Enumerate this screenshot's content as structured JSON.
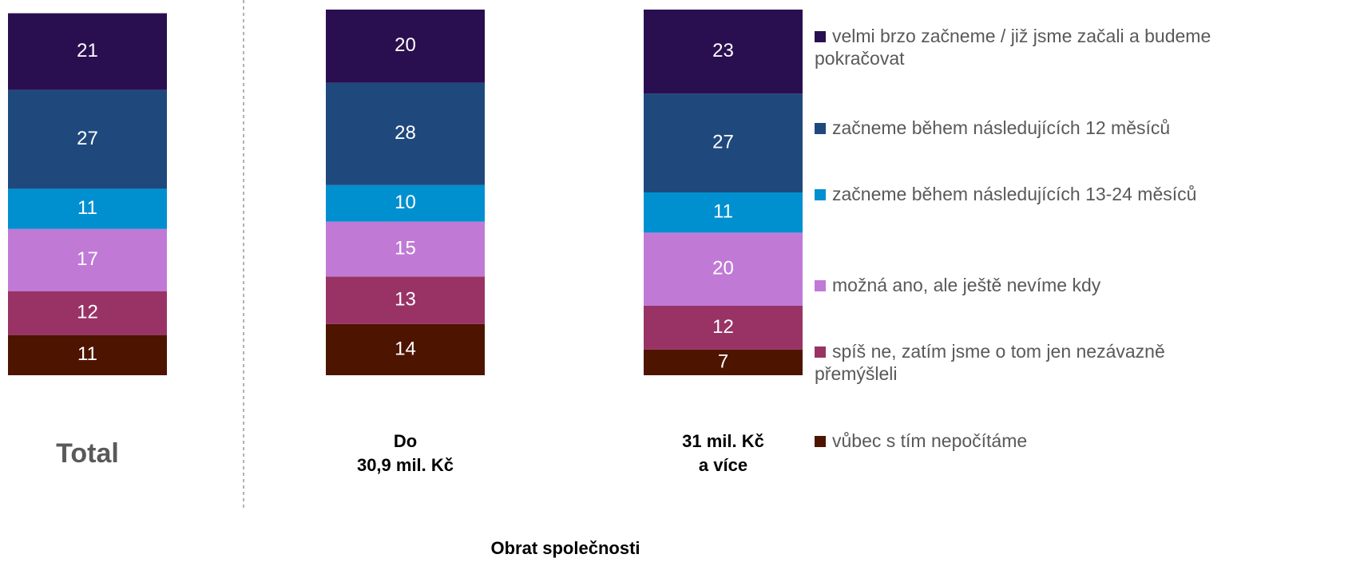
{
  "chart_data": {
    "type": "stacked_bar",
    "x_label": "Obrat společnosti",
    "categories": [
      "Total",
      "Do\n30,9 mil. Kč",
      "31 mil. Kč\na více"
    ],
    "ylim": [
      0,
      100
    ],
    "series": [
      {
        "name": "velmi brzo začneme / již jsme začali a budeme pokračovat",
        "color": "#2a0f50",
        "values": [
          21,
          20,
          23
        ]
      },
      {
        "name": "začneme během následujících 12 měsíců",
        "color": "#1f497d",
        "values": [
          27,
          28,
          27
        ]
      },
      {
        "name": "začneme během následujících 13-24 měsíců",
        "color": "#0090d0",
        "values": [
          11,
          10,
          11
        ]
      },
      {
        "name": "možná ano, ale ještě nevíme kdy",
        "color": "#c07ad6",
        "values": [
          17,
          15,
          20
        ]
      },
      {
        "name": "spíš ne, zatím jsme o tom jen nezávazně přemýšleli",
        "color": "#993366",
        "values": [
          12,
          13,
          12
        ]
      },
      {
        "name": "vůbec s tím nepočítáme",
        "color": "#4d1500",
        "values": [
          11,
          14,
          7
        ]
      }
    ]
  }
}
